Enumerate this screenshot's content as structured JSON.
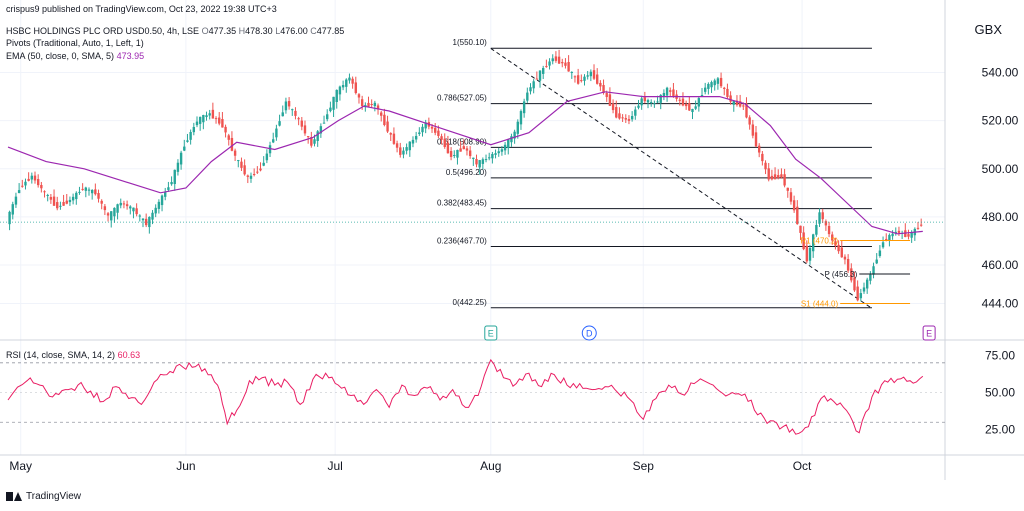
{
  "header": {
    "published": "crispus9 published on TradingView.com, Oct 23, 2022 19:38 UTC+3",
    "symbol": "HSBC HOLDINGS PLC ORD USD0.50, 4h, LSE",
    "ohlc": {
      "o_label": "O",
      "o": "477.35",
      "h_label": "H",
      "h": "478.30",
      "l_label": "L",
      "l": "476.00",
      "c_label": "C",
      "c": "477.85"
    },
    "pivots_label": "Pivots (Traditional, Auto, 1, Left, 1)",
    "ema_label": "EMA (50, close, 0, SMA, 5)",
    "ema_value": "473.95",
    "rsi_label": "RSI (14, close, SMA, 14, 2)",
    "rsi_value": "60.63"
  },
  "currency": "GBX",
  "footer": {
    "brand": "TradingView"
  },
  "colors": {
    "up": "#26a69a",
    "down": "#ef5350",
    "ema": "#9c27b0",
    "rsi": "#e91e63",
    "fib": "#131722",
    "pivot_s1": "#ff9800",
    "pivot_p": "#131722",
    "grid": "#f0f3fa",
    "earnings_marker": "#26a69a",
    "dividend_marker": "#2962ff",
    "upcoming_earnings_marker": "#9c27b0"
  },
  "chart_data": [
    {
      "type": "candlestick",
      "title": "HSBC HOLDINGS PLC ORD USD0.50, 4h, LSE",
      "x_axis_labels": [
        "May",
        "Jun",
        "Jul",
        "Aug",
        "Sep",
        "Oct"
      ],
      "y_ticks": [
        444,
        460,
        480,
        500,
        520,
        540
      ],
      "y_tick_labels": [
        "444.00",
        "460.00",
        "480.00",
        "500.00",
        "520.00",
        "540.00"
      ],
      "ylim": [
        438,
        556
      ],
      "close_path": [
        {
          "x": 0,
          "y": 478
        },
        {
          "x": 4,
          "y": 492
        },
        {
          "x": 8,
          "y": 497
        },
        {
          "x": 12,
          "y": 490
        },
        {
          "x": 16,
          "y": 484
        },
        {
          "x": 20,
          "y": 487
        },
        {
          "x": 24,
          "y": 492
        },
        {
          "x": 28,
          "y": 490
        },
        {
          "x": 32,
          "y": 480
        },
        {
          "x": 36,
          "y": 486
        },
        {
          "x": 40,
          "y": 483
        },
        {
          "x": 44,
          "y": 477
        },
        {
          "x": 48,
          "y": 486
        },
        {
          "x": 52,
          "y": 495
        },
        {
          "x": 56,
          "y": 510
        },
        {
          "x": 60,
          "y": 520
        },
        {
          "x": 64,
          "y": 523
        },
        {
          "x": 68,
          "y": 518
        },
        {
          "x": 72,
          "y": 505
        },
        {
          "x": 76,
          "y": 496
        },
        {
          "x": 80,
          "y": 500
        },
        {
          "x": 84,
          "y": 513
        },
        {
          "x": 88,
          "y": 528
        },
        {
          "x": 92,
          "y": 520
        },
        {
          "x": 96,
          "y": 510
        },
        {
          "x": 100,
          "y": 520
        },
        {
          "x": 104,
          "y": 532
        },
        {
          "x": 108,
          "y": 538
        },
        {
          "x": 112,
          "y": 526
        },
        {
          "x": 116,
          "y": 527
        },
        {
          "x": 120,
          "y": 516
        },
        {
          "x": 124,
          "y": 506
        },
        {
          "x": 128,
          "y": 512
        },
        {
          "x": 132,
          "y": 519
        },
        {
          "x": 136,
          "y": 514
        },
        {
          "x": 140,
          "y": 505
        },
        {
          "x": 144,
          "y": 509
        },
        {
          "x": 148,
          "y": 502
        },
        {
          "x": 152,
          "y": 505
        },
        {
          "x": 156,
          "y": 508
        },
        {
          "x": 160,
          "y": 515
        },
        {
          "x": 164,
          "y": 532
        },
        {
          "x": 168,
          "y": 540
        },
        {
          "x": 172,
          "y": 546
        },
        {
          "x": 176,
          "y": 543
        },
        {
          "x": 180,
          "y": 536
        },
        {
          "x": 184,
          "y": 540
        },
        {
          "x": 188,
          "y": 532
        },
        {
          "x": 192,
          "y": 522
        },
        {
          "x": 196,
          "y": 520
        },
        {
          "x": 200,
          "y": 529
        },
        {
          "x": 204,
          "y": 527
        },
        {
          "x": 208,
          "y": 533
        },
        {
          "x": 212,
          "y": 528
        },
        {
          "x": 216,
          "y": 524
        },
        {
          "x": 220,
          "y": 534
        },
        {
          "x": 224,
          "y": 537
        },
        {
          "x": 228,
          "y": 528
        },
        {
          "x": 232,
          "y": 526
        },
        {
          "x": 236,
          "y": 510
        },
        {
          "x": 240,
          "y": 496
        },
        {
          "x": 244,
          "y": 497
        },
        {
          "x": 248,
          "y": 483
        },
        {
          "x": 252,
          "y": 462
        },
        {
          "x": 256,
          "y": 482
        },
        {
          "x": 260,
          "y": 470
        },
        {
          "x": 264,
          "y": 462
        },
        {
          "x": 268,
          "y": 446
        },
        {
          "x": 272,
          "y": 456
        },
        {
          "x": 276,
          "y": 470
        },
        {
          "x": 280,
          "y": 474
        },
        {
          "x": 284,
          "y": 472
        },
        {
          "x": 288,
          "y": 477
        }
      ],
      "ema_path": [
        {
          "x": 0,
          "y": 509
        },
        {
          "x": 12,
          "y": 503
        },
        {
          "x": 24,
          "y": 500
        },
        {
          "x": 36,
          "y": 495
        },
        {
          "x": 48,
          "y": 490
        },
        {
          "x": 56,
          "y": 492
        },
        {
          "x": 64,
          "y": 503
        },
        {
          "x": 72,
          "y": 511
        },
        {
          "x": 84,
          "y": 508
        },
        {
          "x": 96,
          "y": 513
        },
        {
          "x": 104,
          "y": 520
        },
        {
          "x": 112,
          "y": 526
        },
        {
          "x": 120,
          "y": 524
        },
        {
          "x": 136,
          "y": 517
        },
        {
          "x": 152,
          "y": 510
        },
        {
          "x": 164,
          "y": 515
        },
        {
          "x": 176,
          "y": 528
        },
        {
          "x": 188,
          "y": 532
        },
        {
          "x": 200,
          "y": 530
        },
        {
          "x": 212,
          "y": 530
        },
        {
          "x": 224,
          "y": 530
        },
        {
          "x": 232,
          "y": 527
        },
        {
          "x": 240,
          "y": 518
        },
        {
          "x": 248,
          "y": 504
        },
        {
          "x": 256,
          "y": 496
        },
        {
          "x": 264,
          "y": 486
        },
        {
          "x": 272,
          "y": 476
        },
        {
          "x": 280,
          "y": 473
        },
        {
          "x": 288,
          "y": 474
        }
      ],
      "x_range": [
        0,
        295
      ],
      "x_label_positions": [
        4,
        56,
        103,
        152,
        200,
        250
      ],
      "fibonacci": [
        {
          "label": "1(550.10)",
          "level": 1,
          "value": 550.1
        },
        {
          "label": "0.786(527.05)",
          "level": 0.786,
          "value": 527.05
        },
        {
          "label": "0.618(508.90)",
          "level": 0.618,
          "value": 508.9
        },
        {
          "label": "0.5(496.20)",
          "level": 0.5,
          "value": 496.2
        },
        {
          "label": "0.382(483.45)",
          "level": 0.382,
          "value": 483.45
        },
        {
          "label": "0.236(467.70)",
          "level": 0.236,
          "value": 467.7
        },
        {
          "label": "0(442.25)",
          "level": 0,
          "value": 442.25
        }
      ],
      "fib_x_range": [
        152,
        272
      ],
      "trendline": {
        "from": {
          "x": 152,
          "y": 550
        },
        "to": {
          "x": 272,
          "y": 442
        }
      },
      "pivots": [
        {
          "label": "P (456.3)",
          "value": 456.3,
          "x_range": [
            268,
            284
          ]
        },
        {
          "label": "S1 (444.0)",
          "value": 444.0,
          "x_range": [
            262,
            284
          ]
        },
        {
          "label": "R1 (470.2)",
          "value": 470.2,
          "x_range": [
            262,
            284
          ]
        }
      ],
      "last_price": 477.85,
      "events": [
        {
          "label": "E",
          "x": 152,
          "kind": "earnings"
        },
        {
          "label": "D",
          "x": 183,
          "kind": "dividend"
        },
        {
          "label": "E",
          "x": 290,
          "kind": "upcoming_earnings"
        }
      ]
    },
    {
      "type": "line",
      "title": "RSI (14, close, SMA, 14, 2)",
      "y_ticks": [
        25,
        50,
        75
      ],
      "y_tick_labels": [
        "25.00",
        "50.00",
        "75.00"
      ],
      "bands": [
        30,
        70
      ],
      "ylim": [
        10,
        82
      ],
      "series": [
        {
          "name": "RSI",
          "points": [
            {
              "x": 0,
              "y": 45
            },
            {
              "x": 6,
              "y": 58
            },
            {
              "x": 10,
              "y": 55
            },
            {
              "x": 14,
              "y": 47
            },
            {
              "x": 18,
              "y": 52
            },
            {
              "x": 22,
              "y": 55
            },
            {
              "x": 26,
              "y": 51
            },
            {
              "x": 30,
              "y": 44
            },
            {
              "x": 34,
              "y": 54
            },
            {
              "x": 38,
              "y": 46
            },
            {
              "x": 42,
              "y": 42
            },
            {
              "x": 46,
              "y": 57
            },
            {
              "x": 50,
              "y": 62
            },
            {
              "x": 54,
              "y": 69
            },
            {
              "x": 58,
              "y": 67
            },
            {
              "x": 62,
              "y": 66
            },
            {
              "x": 66,
              "y": 55
            },
            {
              "x": 69,
              "y": 29
            },
            {
              "x": 72,
              "y": 38
            },
            {
              "x": 76,
              "y": 58
            },
            {
              "x": 80,
              "y": 60
            },
            {
              "x": 84,
              "y": 55
            },
            {
              "x": 88,
              "y": 57
            },
            {
              "x": 92,
              "y": 42
            },
            {
              "x": 96,
              "y": 59
            },
            {
              "x": 100,
              "y": 63
            },
            {
              "x": 104,
              "y": 55
            },
            {
              "x": 108,
              "y": 48
            },
            {
              "x": 112,
              "y": 42
            },
            {
              "x": 116,
              "y": 52
            },
            {
              "x": 120,
              "y": 40
            },
            {
              "x": 124,
              "y": 55
            },
            {
              "x": 128,
              "y": 48
            },
            {
              "x": 132,
              "y": 53
            },
            {
              "x": 136,
              "y": 45
            },
            {
              "x": 140,
              "y": 52
            },
            {
              "x": 144,
              "y": 40
            },
            {
              "x": 148,
              "y": 48
            },
            {
              "x": 152,
              "y": 72
            },
            {
              "x": 156,
              "y": 60
            },
            {
              "x": 160,
              "y": 56
            },
            {
              "x": 164,
              "y": 63
            },
            {
              "x": 168,
              "y": 54
            },
            {
              "x": 172,
              "y": 62
            },
            {
              "x": 176,
              "y": 55
            },
            {
              "x": 180,
              "y": 56
            },
            {
              "x": 184,
              "y": 52
            },
            {
              "x": 188,
              "y": 54
            },
            {
              "x": 192,
              "y": 50
            },
            {
              "x": 196,
              "y": 45
            },
            {
              "x": 200,
              "y": 32
            },
            {
              "x": 204,
              "y": 46
            },
            {
              "x": 208,
              "y": 55
            },
            {
              "x": 212,
              "y": 49
            },
            {
              "x": 216,
              "y": 56
            },
            {
              "x": 220,
              "y": 57
            },
            {
              "x": 224,
              "y": 51
            },
            {
              "x": 228,
              "y": 50
            },
            {
              "x": 232,
              "y": 49
            },
            {
              "x": 236,
              "y": 35
            },
            {
              "x": 240,
              "y": 31
            },
            {
              "x": 244,
              "y": 27
            },
            {
              "x": 248,
              "y": 22
            },
            {
              "x": 252,
              "y": 27
            },
            {
              "x": 256,
              "y": 46
            },
            {
              "x": 260,
              "y": 44
            },
            {
              "x": 264,
              "y": 38
            },
            {
              "x": 268,
              "y": 23
            },
            {
              "x": 272,
              "y": 47
            },
            {
              "x": 276,
              "y": 58
            },
            {
              "x": 280,
              "y": 59
            },
            {
              "x": 284,
              "y": 58
            },
            {
              "x": 288,
              "y": 61
            }
          ]
        }
      ]
    }
  ]
}
